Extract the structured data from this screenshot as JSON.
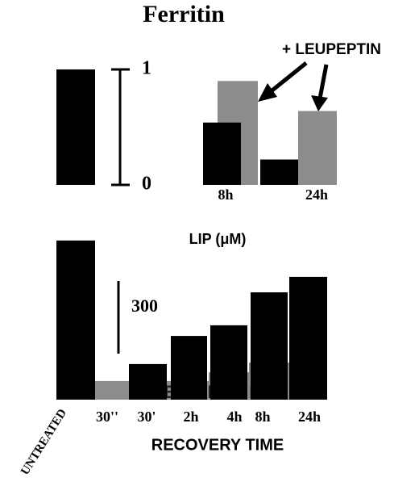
{
  "chart_data": [
    {
      "type": "bar",
      "title": "Ferritin",
      "categories": [
        null,
        "8h",
        "24h"
      ],
      "series": [
        {
          "color": "#000000",
          "values": [
            1.0,
            0.54,
            0.22
          ]
        },
        {
          "name": "+ LEUPEPTIN",
          "color": "#8c8c8c",
          "values": [
            null,
            0.9,
            0.64
          ]
        }
      ],
      "ylim": [
        0,
        1
      ],
      "yticks": [
        0,
        1
      ]
    },
    {
      "type": "bar",
      "title": "LIP (μM)",
      "x_label": "RECOVERY TIME",
      "categories": [
        "UNTREATED",
        "30''",
        "30'",
        "2h",
        "4h",
        "8h",
        "24h"
      ],
      "series": [
        {
          "color": "#000000",
          "values": [
            657,
            null,
            147,
            263,
            307,
            443,
            507
          ]
        },
        {
          "name": "LEUPEPTIN",
          "color": "#8c8c8c",
          "values": [
            null,
            77,
            77,
            77,
            113,
            153,
            153
          ]
        }
      ],
      "scale_bar": 300
    }
  ]
}
